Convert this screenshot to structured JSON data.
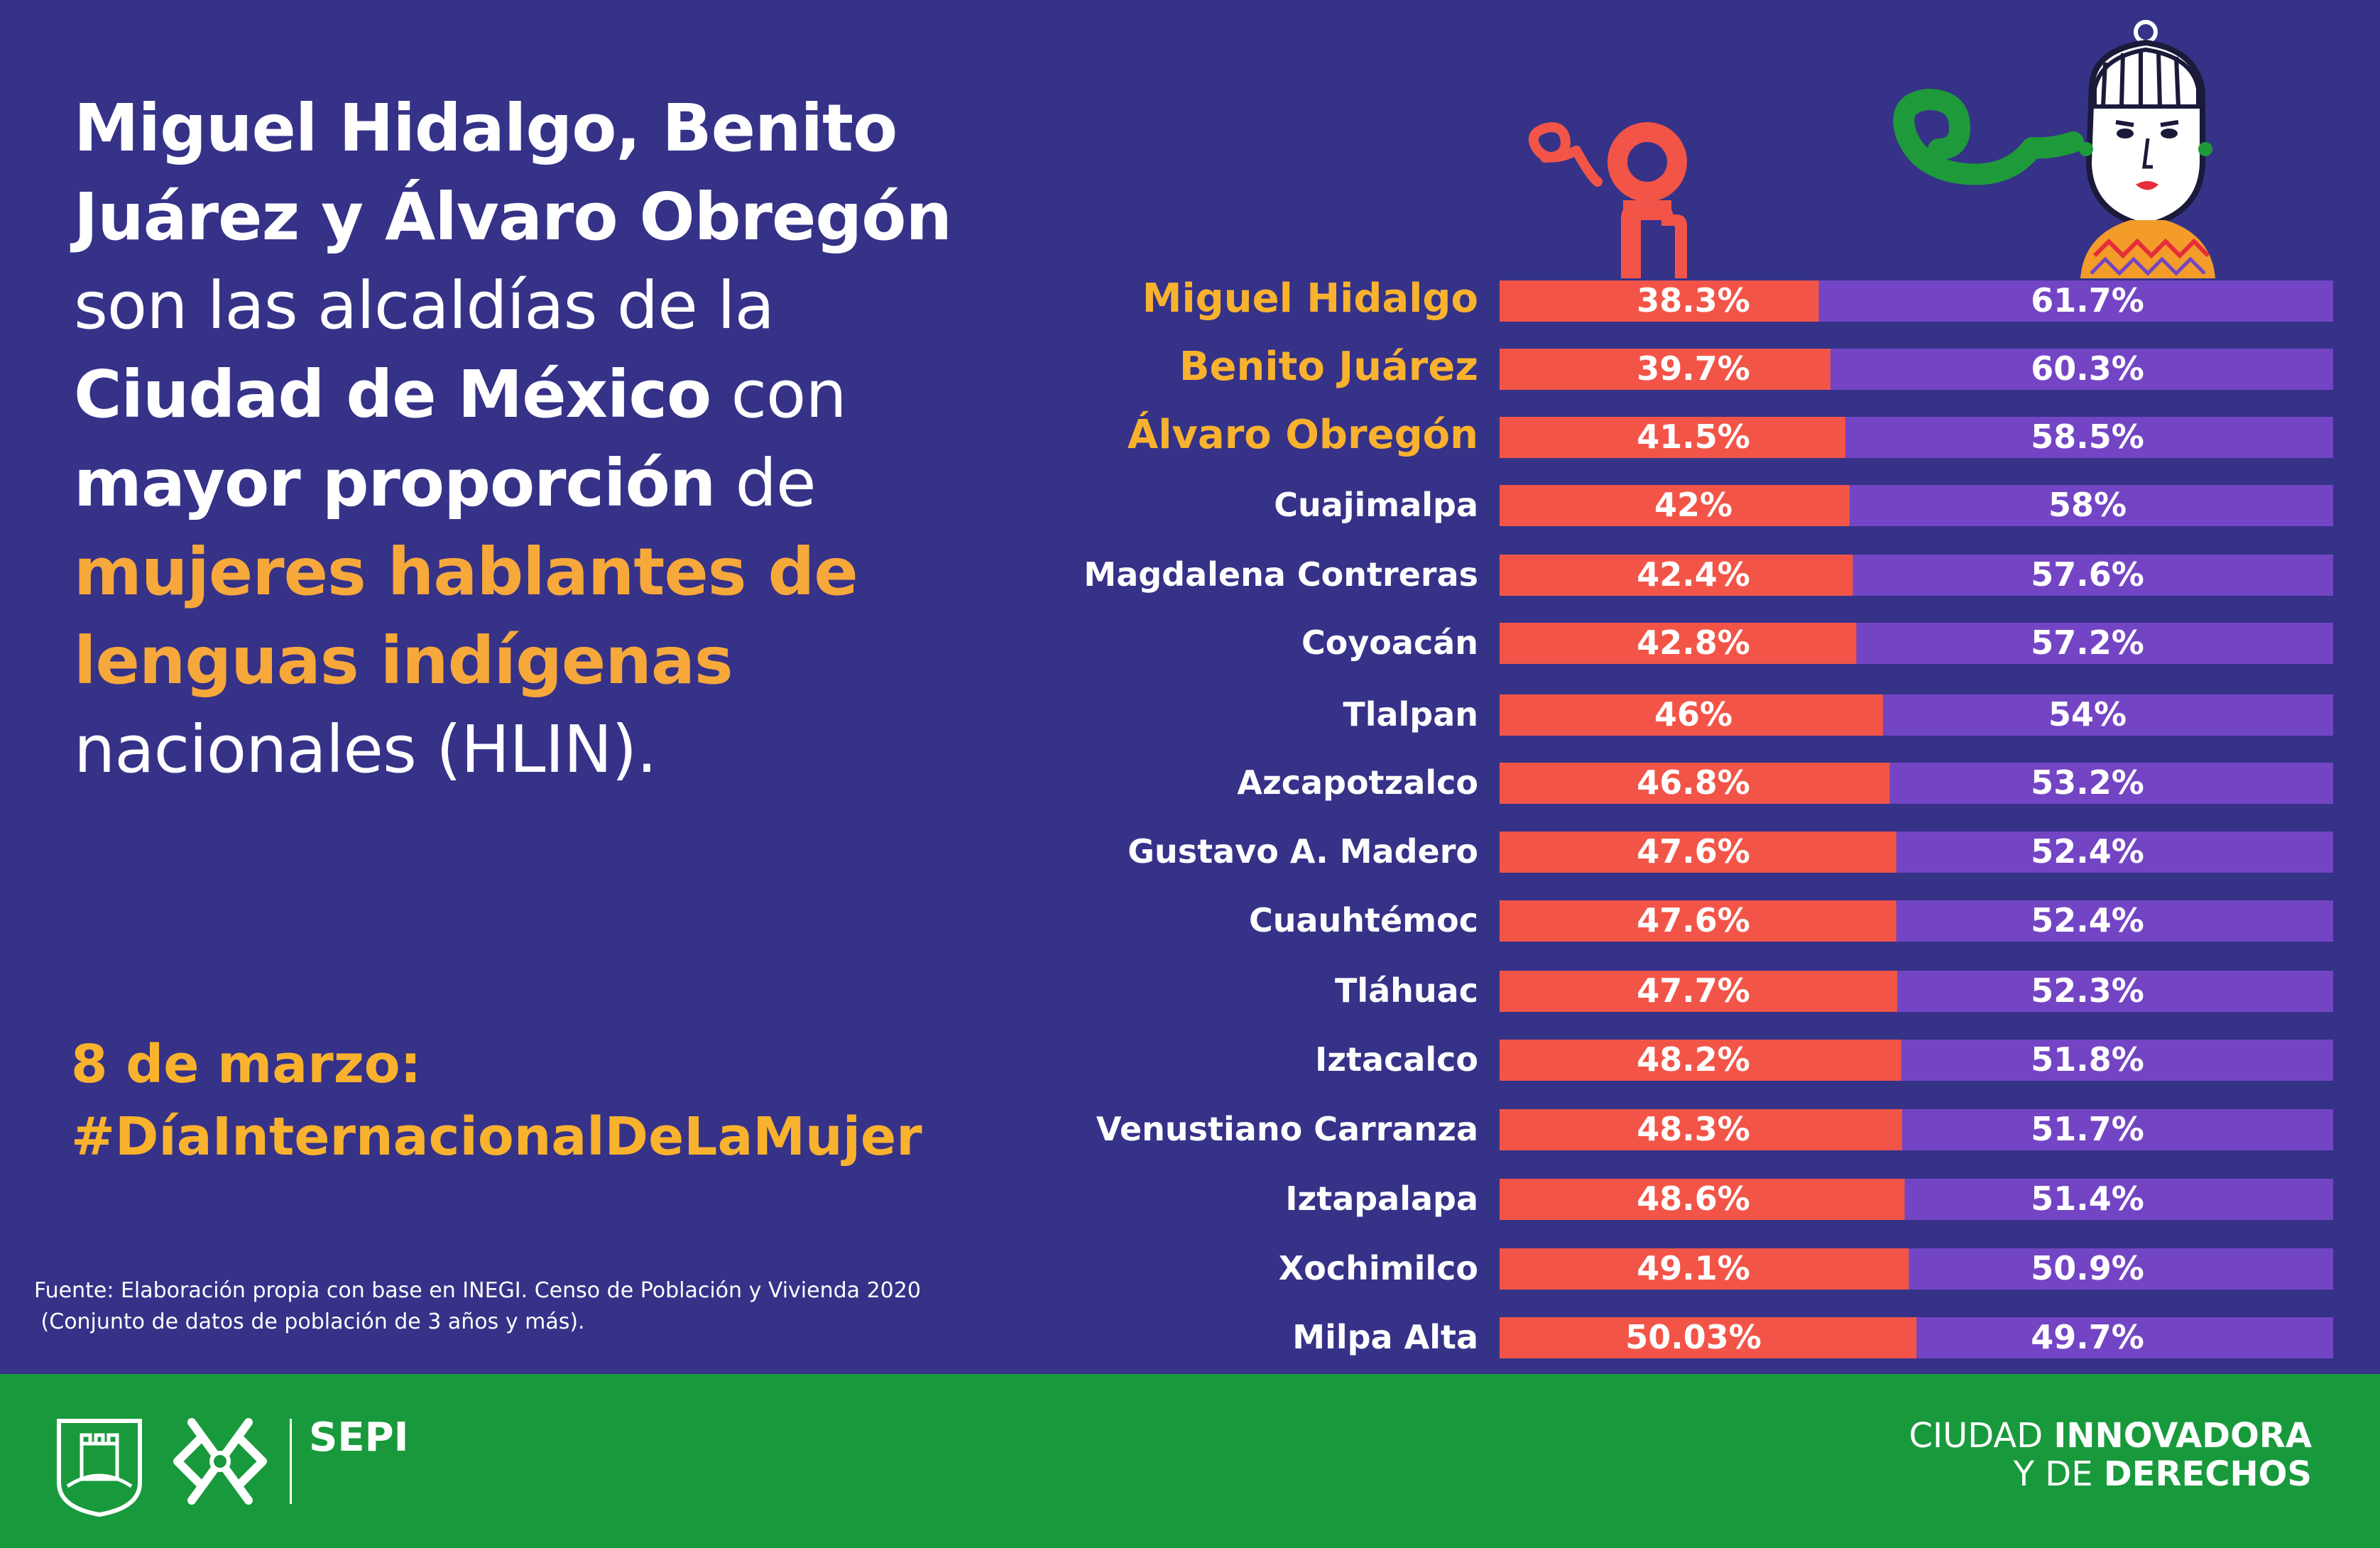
{
  "headline": {
    "part1": "Miguel Hidalgo, Benito Juárez y Álvaro Obregón",
    "part2": "son las alcaldías de la",
    "part3": "Ciudad de México",
    "part4": "con",
    "part5": "mayor proporción",
    "part6": "de",
    "part7": "mujeres hablantes de lenguas indígenas",
    "part8": "nacionales (HLIN)."
  },
  "hashtag": {
    "line1": "8 de marzo:",
    "line2": "#DíaInternacionalDeLaMujer"
  },
  "source": {
    "line1": "Fuente: Elaboración propia con base en INEGI. Censo de Población y Vivienda 2020",
    "line2": " (Conjunto de datos de población de 3 años y más)."
  },
  "footer": {
    "org": "SEPI",
    "slogan_l1a": "CIUDAD ",
    "slogan_l1b": "INNOVADORA",
    "slogan_l2a": "Y DE ",
    "slogan_l2b": "DERECHOS"
  },
  "colors": {
    "background": "#353288",
    "men": "#f25548",
    "women": "#7345c4",
    "highlight": "#f9b22e",
    "footer": "#189a3c"
  },
  "chart_data": {
    "type": "bar",
    "stacked": true,
    "orientation": "horizontal",
    "categories": [
      "Miguel Hidalgo",
      "Benito Juárez",
      "Álvaro Obregón",
      "Cuajimalpa",
      "Magdalena Contreras",
      "Coyoacán",
      "Tlalpan",
      "Azcapotzalco",
      "Gustavo A. Madero",
      "Cuauhtémoc",
      "Tláhuac",
      "Iztacalco",
      "Venustiano Carranza",
      "Iztapalapa",
      "Xochimilco",
      "Milpa Alta"
    ],
    "highlighted": [
      "Miguel Hidalgo",
      "Benito Juárez",
      "Álvaro Obregón"
    ],
    "series": [
      {
        "values": [
          38.3,
          39.7,
          41.5,
          42,
          42.4,
          42.8,
          46,
          46.8,
          47.6,
          47.6,
          47.7,
          48.2,
          48.3,
          48.6,
          49.1,
          50.03
        ],
        "labels": [
          "38.3%",
          "39.7%",
          "41.5%",
          "42%",
          "42.4%",
          "42.8%",
          "46%",
          "46.8%",
          "47.6%",
          "47.6%",
          "47.7%",
          "48.2%",
          "48.3%",
          "48.6%",
          "49.1%",
          "50.03%"
        ],
        "color": "#f25548",
        "icon": "man-icon"
      },
      {
        "values": [
          61.7,
          60.3,
          58.5,
          58,
          57.6,
          57.2,
          54,
          53.2,
          52.4,
          52.4,
          52.3,
          51.8,
          51.7,
          51.4,
          50.9,
          49.7
        ],
        "labels": [
          "61.7%",
          "60.3%",
          "58.5%",
          "58%",
          "57.6%",
          "57.2%",
          "54%",
          "53.2%",
          "52.4%",
          "52.4%",
          "52.3%",
          "51.8%",
          "51.7%",
          "51.4%",
          "50.9%",
          "49.7%"
        ],
        "color": "#7345c4",
        "icon": "woman-icon"
      }
    ],
    "xlim": [
      0,
      100
    ]
  }
}
